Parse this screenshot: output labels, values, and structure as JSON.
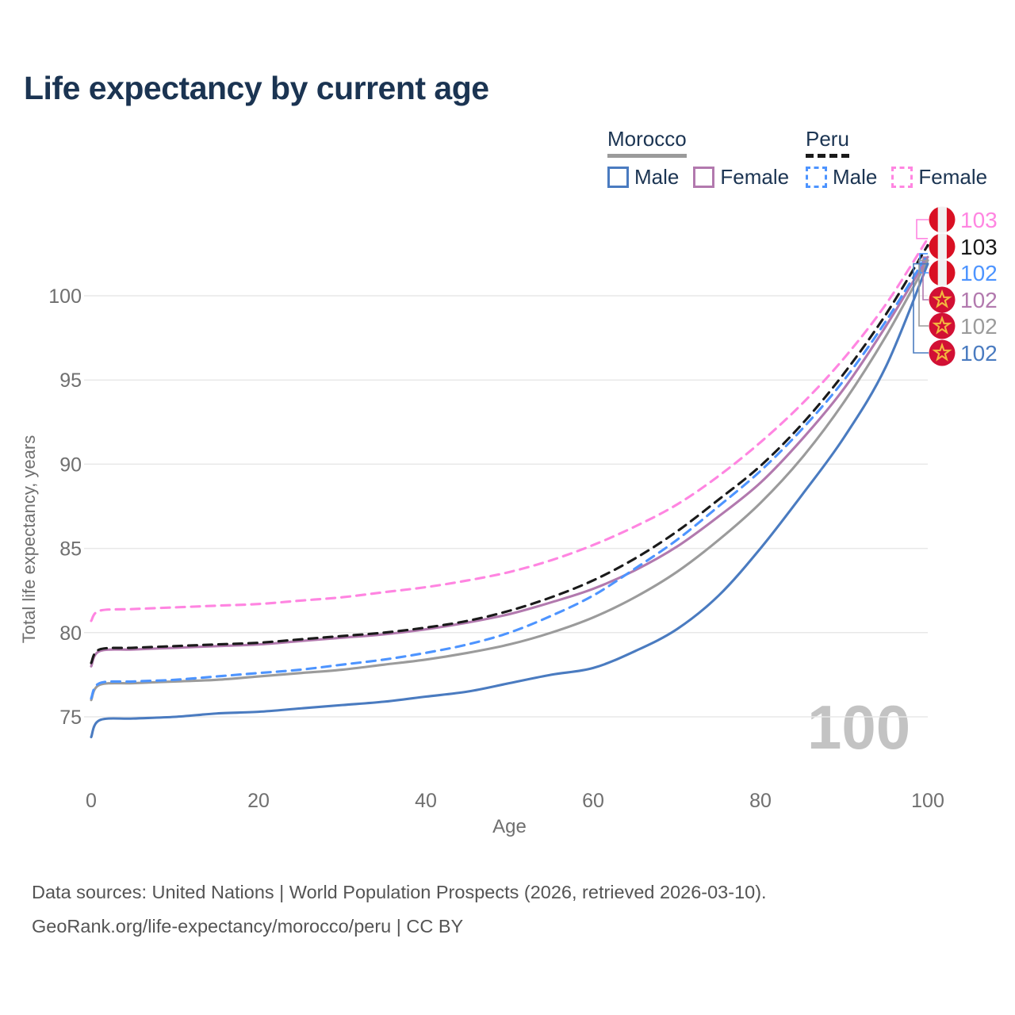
{
  "title": "Life expectancy by current age",
  "legend": {
    "groups": [
      {
        "label": "Morocco",
        "line_style": "solid",
        "underline_color": "#9b9b9b",
        "items": [
          {
            "label": "Male",
            "color": "#4a7bc0",
            "dashed": false
          },
          {
            "label": "Female",
            "color": "#b279ae",
            "dashed": false
          }
        ]
      },
      {
        "label": "Peru",
        "line_style": "dashed",
        "underline_color": "#1a1a1a",
        "items": [
          {
            "label": "Male",
            "color": "#4d94ff",
            "dashed": true
          },
          {
            "label": "Female",
            "color": "#ff85e1",
            "dashed": true
          }
        ]
      }
    ]
  },
  "watermark_age": "100",
  "footer": {
    "line1": "Data sources: United Nations | World Population Prospects (2026, retrieved 2026-03-10).",
    "line2": "GeoRank.org/life-expectancy/morocco/peru | CC BY"
  },
  "chart_data": {
    "type": "line",
    "title": "Life expectancy by current age",
    "xlabel": "Age",
    "ylabel": "Total life expectancy, years",
    "xlim": [
      0,
      100
    ],
    "ylim": [
      73,
      104
    ],
    "xticks": [
      0,
      20,
      40,
      60,
      80,
      100
    ],
    "yticks": [
      75,
      80,
      85,
      90,
      95,
      100
    ],
    "grid": "horizontal-only",
    "legend_position": "top-right",
    "x": [
      0,
      1,
      5,
      10,
      15,
      20,
      25,
      30,
      35,
      40,
      45,
      50,
      55,
      60,
      65,
      70,
      75,
      80,
      85,
      90,
      95,
      100
    ],
    "series": [
      {
        "name": "Peru Female",
        "country": "Peru",
        "sex": "Female",
        "flag": "peru",
        "color": "#ff85e1",
        "dashed": true,
        "end_label": "103",
        "values": [
          80.7,
          81.3,
          81.4,
          81.5,
          81.6,
          81.7,
          81.9,
          82.1,
          82.4,
          82.7,
          83.1,
          83.6,
          84.3,
          85.2,
          86.3,
          87.6,
          89.3,
          91.3,
          93.6,
          96.3,
          99.5,
          103.4
        ]
      },
      {
        "name": "Peru",
        "country": "Peru",
        "sex": "Both",
        "flag": "peru",
        "color": "#1a1a1a",
        "dashed": true,
        "end_label": "103",
        "values": [
          78.2,
          79.0,
          79.1,
          79.2,
          79.3,
          79.4,
          79.6,
          79.8,
          80.0,
          80.3,
          80.7,
          81.3,
          82.1,
          83.1,
          84.4,
          86.0,
          87.9,
          89.9,
          92.4,
          95.4,
          98.9,
          103.0
        ]
      },
      {
        "name": "Peru Male",
        "country": "Peru",
        "sex": "Male",
        "flag": "peru",
        "color": "#4d94ff",
        "dashed": true,
        "end_label": "102",
        "values": [
          76.1,
          77.0,
          77.1,
          77.2,
          77.4,
          77.6,
          77.8,
          78.1,
          78.4,
          78.8,
          79.3,
          80.0,
          81.0,
          82.2,
          83.8,
          85.5,
          87.5,
          89.6,
          92.1,
          95.0,
          98.5,
          102.5
        ]
      },
      {
        "name": "Morocco Female",
        "country": "Morocco",
        "sex": "Female",
        "flag": "morocco",
        "color": "#b279ae",
        "dashed": false,
        "end_label": "102",
        "values": [
          78.0,
          78.9,
          79.0,
          79.1,
          79.2,
          79.3,
          79.5,
          79.7,
          79.9,
          80.2,
          80.6,
          81.1,
          81.8,
          82.6,
          83.7,
          85.1,
          86.9,
          88.9,
          91.5,
          94.5,
          98.2,
          102.3
        ]
      },
      {
        "name": "Morocco",
        "country": "Morocco",
        "sex": "Both",
        "flag": "morocco",
        "color": "#9b9b9b",
        "dashed": false,
        "end_label": "102",
        "values": [
          76.0,
          76.9,
          77.0,
          77.1,
          77.2,
          77.4,
          77.6,
          77.8,
          78.1,
          78.4,
          78.8,
          79.3,
          80.0,
          80.9,
          82.1,
          83.6,
          85.5,
          87.7,
          90.4,
          93.7,
          97.6,
          102.1
        ]
      },
      {
        "name": "Morocco Male",
        "country": "Morocco",
        "sex": "Male",
        "flag": "morocco",
        "color": "#4a7bc0",
        "dashed": false,
        "end_label": "102",
        "values": [
          73.8,
          74.8,
          74.9,
          75.0,
          75.2,
          75.3,
          75.5,
          75.7,
          75.9,
          76.2,
          76.5,
          77.0,
          77.5,
          77.9,
          78.9,
          80.2,
          82.2,
          85.0,
          88.2,
          91.6,
          95.8,
          101.9
        ]
      }
    ],
    "flag_colors": {
      "peru_red": "#d91023",
      "peru_white": "#f1f1f1",
      "morocco_red": "#d21034",
      "morocco_star": "#f3b73f"
    }
  }
}
